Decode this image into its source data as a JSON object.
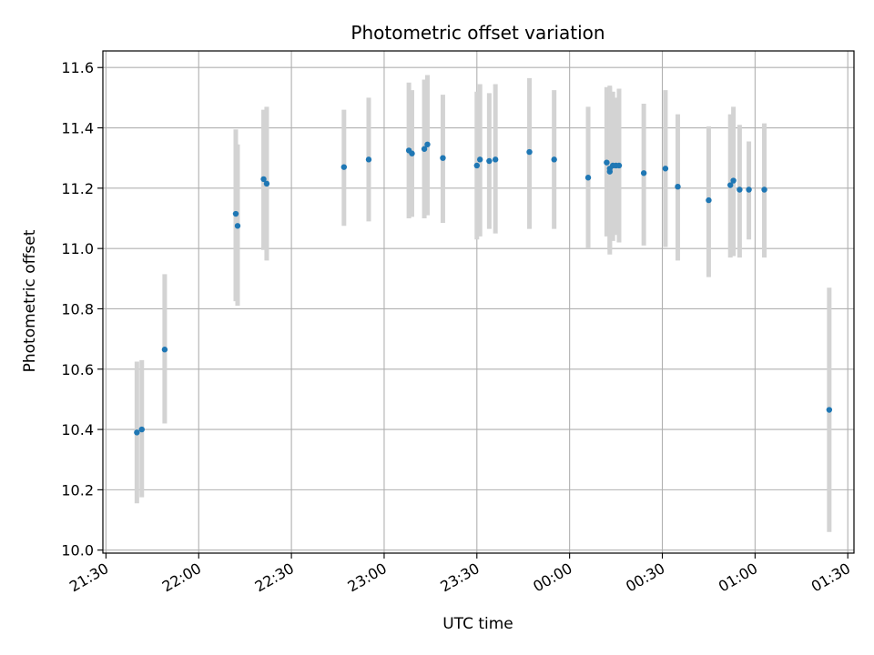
{
  "chart_data": {
    "type": "scatter",
    "title": "Photometric offset variation",
    "xlabel": "UTC time",
    "ylabel": "Photometric offset",
    "x_ticks": [
      "21:30",
      "22:00",
      "22:30",
      "23:00",
      "23:30",
      "00:00",
      "00:30",
      "01:00",
      "01:30"
    ],
    "y_ticks": [
      "10.0",
      "10.2",
      "10.4",
      "10.6",
      "10.8",
      "11.0",
      "11.2",
      "11.4",
      "11.6"
    ],
    "ylim": [
      9.99,
      11.655
    ],
    "xlim": [
      "21:29",
      "01:32"
    ],
    "grid": true,
    "marker_color": "#1f77b4",
    "errorbar_color": "#d3d3d3",
    "series": [
      {
        "points": [
          {
            "x": "21:40",
            "y": 10.39,
            "ylo": 10.155,
            "yhi": 10.625
          },
          {
            "x": "21:41",
            "y": 10.4,
            "ylo": 10.175,
            "yhi": 10.63
          },
          {
            "x": "21:49",
            "y": 10.665,
            "ylo": 10.42,
            "yhi": 10.915
          },
          {
            "x": "22:12",
            "y": 11.115,
            "ylo": 10.825,
            "yhi": 11.395
          },
          {
            "x": "22:12",
            "y": 11.075,
            "ylo": 10.81,
            "yhi": 11.345
          },
          {
            "x": "22:21",
            "y": 11.23,
            "ylo": 10.995,
            "yhi": 11.46
          },
          {
            "x": "22:22",
            "y": 11.215,
            "ylo": 10.96,
            "yhi": 11.47
          },
          {
            "x": "22:47",
            "y": 11.27,
            "ylo": 11.075,
            "yhi": 11.46
          },
          {
            "x": "22:55",
            "y": 11.295,
            "ylo": 11.09,
            "yhi": 11.5
          },
          {
            "x": "23:08",
            "y": 11.325,
            "ylo": 11.1,
            "yhi": 11.55
          },
          {
            "x": "23:09",
            "y": 11.315,
            "ylo": 11.105,
            "yhi": 11.525
          },
          {
            "x": "23:13",
            "y": 11.33,
            "ylo": 11.1,
            "yhi": 11.56
          },
          {
            "x": "23:14",
            "y": 11.345,
            "ylo": 11.11,
            "yhi": 11.575
          },
          {
            "x": "23:19",
            "y": 11.3,
            "ylo": 11.085,
            "yhi": 11.51
          },
          {
            "x": "23:30",
            "y": 11.275,
            "ylo": 11.03,
            "yhi": 11.52
          },
          {
            "x": "23:31",
            "y": 11.295,
            "ylo": 11.04,
            "yhi": 11.545
          },
          {
            "x": "23:34",
            "y": 11.29,
            "ylo": 11.065,
            "yhi": 11.515
          },
          {
            "x": "23:36",
            "y": 11.295,
            "ylo": 11.05,
            "yhi": 11.545
          },
          {
            "x": "23:47",
            "y": 11.32,
            "ylo": 11.065,
            "yhi": 11.565
          },
          {
            "x": "23:55",
            "y": 11.295,
            "ylo": 11.065,
            "yhi": 11.525
          },
          {
            "x": "00:06",
            "y": 11.235,
            "ylo": 11.0,
            "yhi": 11.47
          },
          {
            "x": "00:12",
            "y": 11.285,
            "ylo": 11.04,
            "yhi": 11.535
          },
          {
            "x": "00:13",
            "y": 11.255,
            "ylo": 10.995,
            "yhi": 11.535
          },
          {
            "x": "00:13",
            "y": 11.265,
            "ylo": 10.98,
            "yhi": 11.54
          },
          {
            "x": "00:14",
            "y": 11.275,
            "ylo": 11.025,
            "yhi": 11.52
          },
          {
            "x": "00:15",
            "y": 11.275,
            "ylo": 11.045,
            "yhi": 11.5
          },
          {
            "x": "00:16",
            "y": 11.275,
            "ylo": 11.02,
            "yhi": 11.53
          },
          {
            "x": "00:24",
            "y": 11.25,
            "ylo": 11.01,
            "yhi": 11.48
          },
          {
            "x": "00:31",
            "y": 11.265,
            "ylo": 11.005,
            "yhi": 11.525
          },
          {
            "x": "00:35",
            "y": 11.205,
            "ylo": 10.96,
            "yhi": 11.445
          },
          {
            "x": "00:45",
            "y": 11.16,
            "ylo": 10.905,
            "yhi": 11.405
          },
          {
            "x": "00:52",
            "y": 11.21,
            "ylo": 10.97,
            "yhi": 11.445
          },
          {
            "x": "00:53",
            "y": 11.225,
            "ylo": 10.975,
            "yhi": 11.47
          },
          {
            "x": "00:55",
            "y": 11.195,
            "ylo": 10.97,
            "yhi": 11.41
          },
          {
            "x": "00:58",
            "y": 11.195,
            "ylo": 11.03,
            "yhi": 11.355
          },
          {
            "x": "01:03",
            "y": 11.195,
            "ylo": 10.97,
            "yhi": 11.415
          },
          {
            "x": "01:24",
            "y": 10.465,
            "ylo": 10.06,
            "yhi": 10.87
          }
        ]
      }
    ]
  }
}
